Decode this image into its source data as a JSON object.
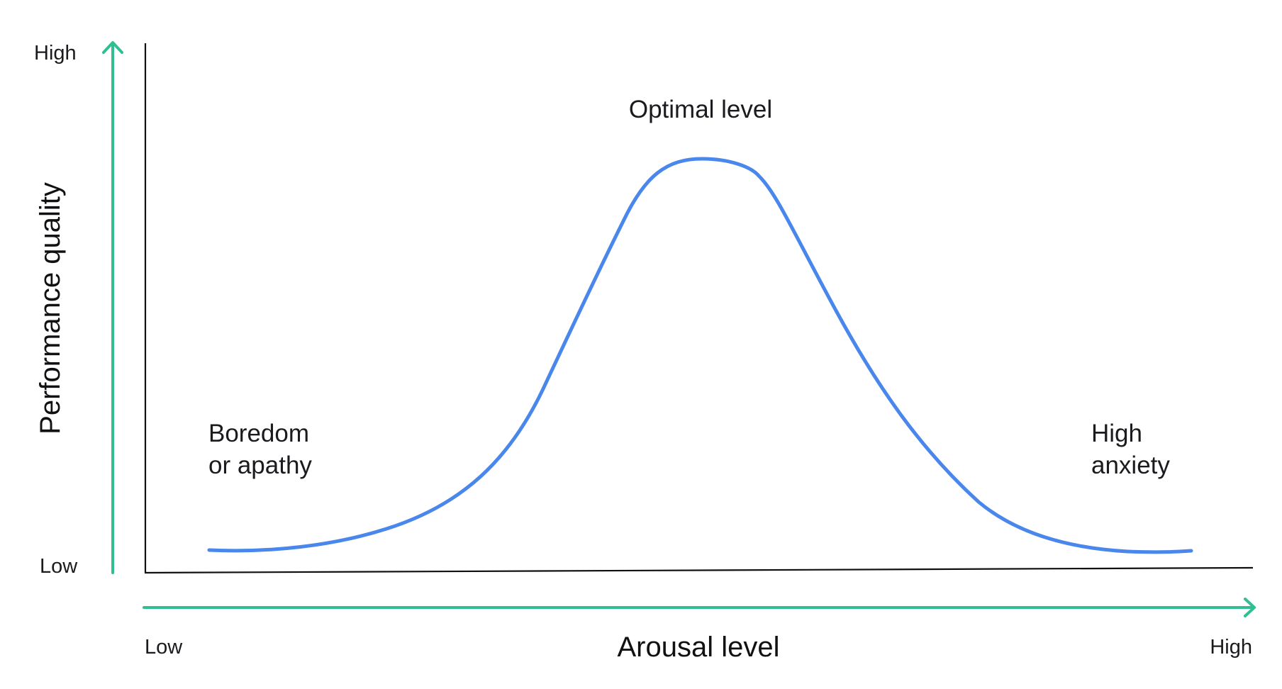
{
  "colors": {
    "accent_arrow": "#2fbf93",
    "curve": "#4a87ec",
    "axis_line": "#111111",
    "text": "#1b1b1f"
  },
  "y_axis": {
    "title": "Performance quality",
    "high_label": "High",
    "low_label": "Low"
  },
  "x_axis": {
    "title": "Arousal level",
    "low_label": "Low",
    "high_label": "High"
  },
  "annotations": {
    "peak": "Optimal level",
    "left_line1": "Boredom",
    "left_line2": "or apathy",
    "right_line1": "High",
    "right_line2": "anxiety"
  },
  "curve": {
    "shape": "inverted-u",
    "series": "performance-vs-arousal"
  }
}
